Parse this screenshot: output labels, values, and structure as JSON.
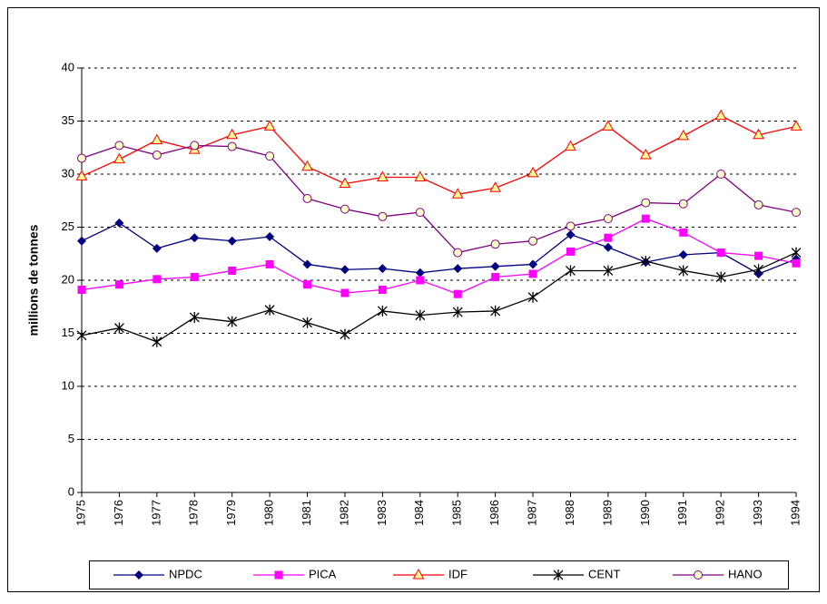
{
  "chart_data": {
    "type": "line",
    "ylabel": "millions de tonnes",
    "categories": [
      "1975",
      "1976",
      "1977",
      "1978",
      "1979",
      "1980",
      "1981",
      "1982",
      "1983",
      "1984",
      "1985",
      "1986",
      "1987",
      "1988",
      "1989",
      "1990",
      "1991",
      "1992",
      "1993",
      "1994"
    ],
    "series": [
      {
        "name": "NPDC",
        "color": "#000080",
        "marker": "diamond",
        "values": [
          23.7,
          25.4,
          23.0,
          24.0,
          23.7,
          24.1,
          21.5,
          21.0,
          21.1,
          20.7,
          21.1,
          21.3,
          21.5,
          24.3,
          23.1,
          21.7,
          22.4,
          22.6,
          20.6,
          22.0
        ]
      },
      {
        "name": "PICA",
        "color": "#ff00ff",
        "marker": "square",
        "values": [
          19.1,
          19.6,
          20.1,
          20.3,
          20.9,
          21.5,
          19.6,
          18.8,
          19.1,
          20.0,
          18.7,
          20.3,
          20.6,
          22.7,
          24.0,
          25.8,
          24.5,
          22.6,
          22.3,
          21.6
        ]
      },
      {
        "name": "IDF",
        "color": "#ff0000",
        "marker": "triangle",
        "values": [
          29.8,
          31.4,
          33.2,
          32.3,
          33.7,
          34.5,
          30.7,
          29.1,
          29.7,
          29.7,
          28.1,
          28.7,
          30.1,
          32.6,
          34.5,
          31.8,
          33.6,
          35.5,
          33.7,
          34.5
        ]
      },
      {
        "name": "CENT",
        "color": "#000000",
        "marker": "star",
        "values": [
          14.8,
          15.5,
          14.2,
          16.5,
          16.1,
          17.2,
          16.0,
          14.9,
          17.1,
          16.7,
          17.0,
          17.1,
          18.4,
          20.9,
          20.9,
          21.8,
          20.9,
          20.3,
          21.0,
          22.6
        ]
      },
      {
        "name": "HANO",
        "color": "#800080",
        "marker": "circle",
        "values": [
          31.5,
          32.7,
          31.8,
          32.7,
          32.6,
          31.7,
          27.7,
          26.7,
          26.0,
          26.4,
          22.6,
          23.4,
          23.7,
          25.1,
          25.8,
          27.3,
          27.2,
          30.0,
          27.1,
          26.4
        ]
      }
    ],
    "ylim": [
      0,
      40
    ],
    "yticks": [
      0,
      5,
      10,
      15,
      20,
      25,
      30,
      35,
      40
    ],
    "grid": true,
    "legend": "bottom"
  }
}
